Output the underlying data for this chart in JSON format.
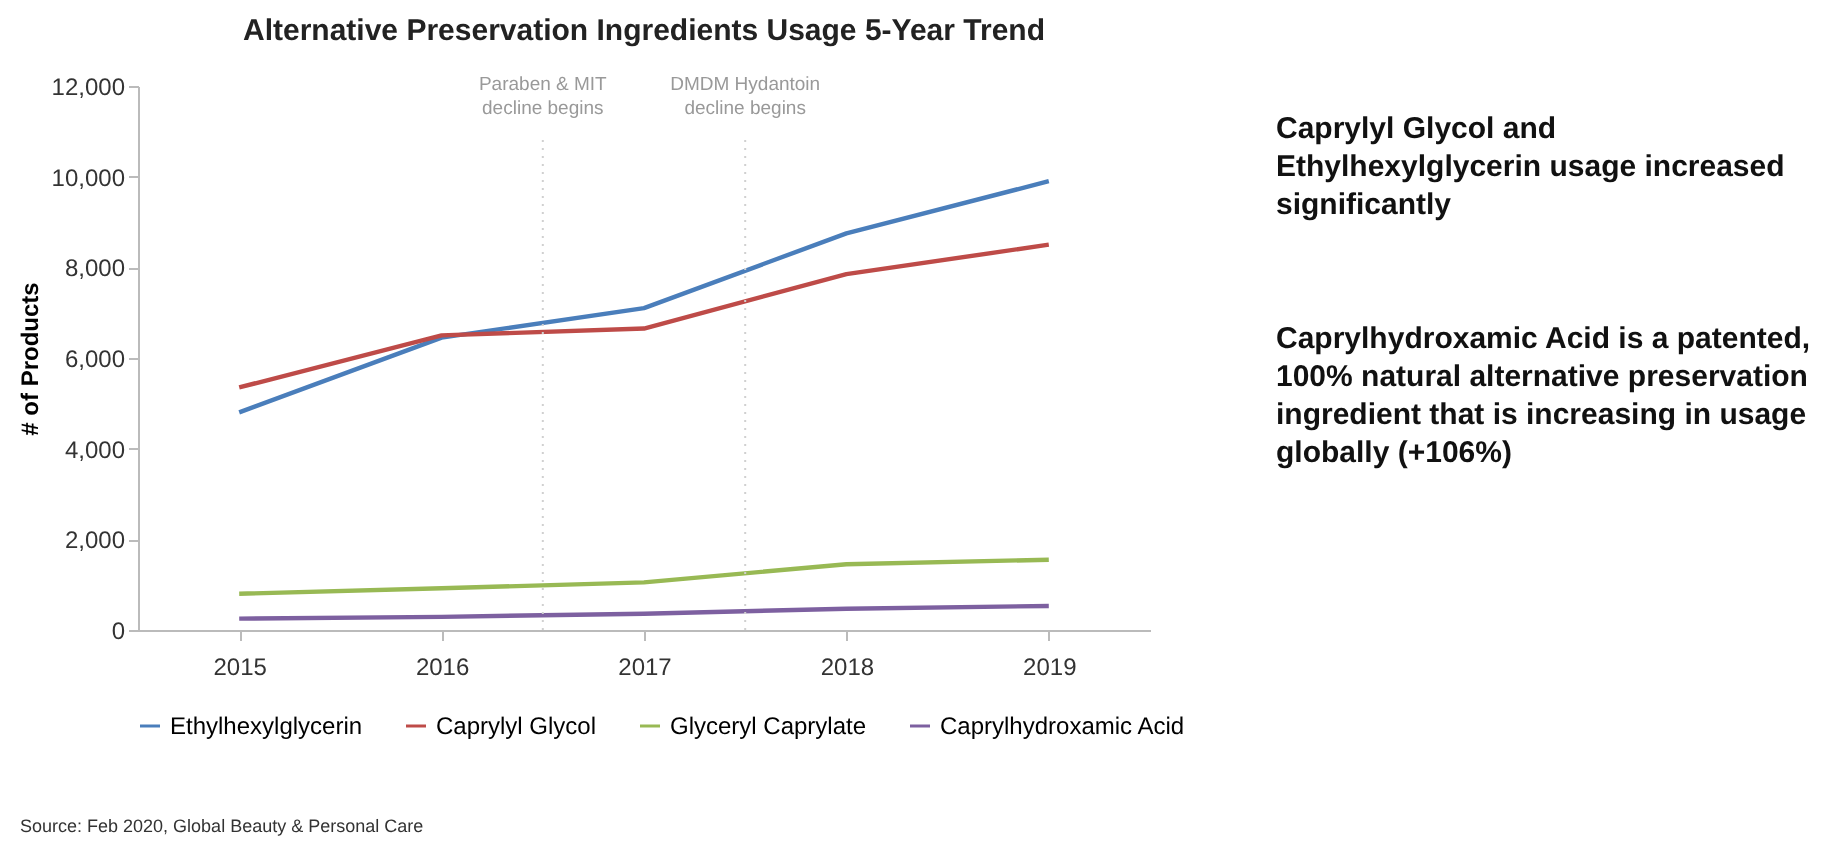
{
  "chart_data": {
    "type": "line",
    "title": "Alternative Preservation Ingredients Usage 5-Year Trend",
    "ylabel": "# of Products",
    "x": [
      2015,
      2016,
      2017,
      2018,
      2019
    ],
    "xlim": [
      2014.5,
      2019.5
    ],
    "xticks": [
      2015,
      2016,
      2017,
      2018,
      2019
    ],
    "ylim": [
      0,
      12000
    ],
    "yticks": [
      {
        "value": 0,
        "label": "0"
      },
      {
        "value": 2000,
        "label": "2,000"
      },
      {
        "value": 4000,
        "label": "4,000"
      },
      {
        "value": 6000,
        "label": "6,000"
      },
      {
        "value": 8000,
        "label": "8,000"
      },
      {
        "value": 10000,
        "label": "10,000"
      },
      {
        "value": 12000,
        "label": "12,000"
      }
    ],
    "series": [
      {
        "name": "Ethylhexylglycerin",
        "color": "#4a7ebb",
        "values": [
          4800,
          6450,
          7100,
          8750,
          9900
        ]
      },
      {
        "name": "Caprylyl Glycol",
        "color": "#be4b48",
        "values": [
          5350,
          6500,
          6650,
          7850,
          8500
        ]
      },
      {
        "name": "Glyceryl Caprylate",
        "color": "#98b954",
        "values": [
          800,
          920,
          1050,
          1450,
          1550
        ]
      },
      {
        "name": "Caprylhydroxamic Acid",
        "color": "#7d60a0",
        "values": [
          250,
          290,
          360,
          470,
          530
        ]
      }
    ],
    "ref_lines": [
      {
        "axis": "x",
        "value": 2016.5,
        "label": "Paraben & MIT decline begins",
        "color": "#d0d0d0",
        "line_style": "dotted"
      },
      {
        "axis": "x",
        "value": 2017.5,
        "label": "DMDM Hydantoin decline begins",
        "color": "#d0d0d0",
        "line_style": "dotted"
      }
    ],
    "annotations": [
      "Caprylyl Glycol and Ethylhexylglycerin  usage increased significantly",
      "Caprylhydroxamic Acid is a patented, 100% natural alternative preservation ingredient that is increasing in usage globally (+106%)",
      "Source: Feb 2020, Global Beauty & Personal Care"
    ],
    "legend": "bottom",
    "grid": false,
    "marker": "none",
    "line_style": "solid"
  }
}
